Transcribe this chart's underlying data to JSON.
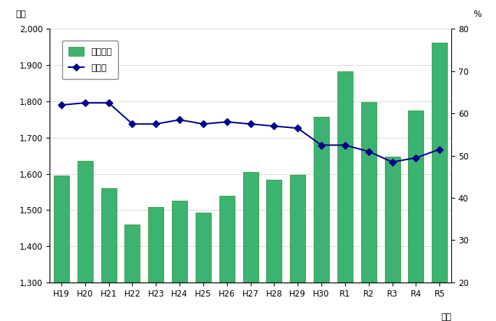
{
  "categories": [
    "H19",
    "H20",
    "H21",
    "H22",
    "H23",
    "H24",
    "H25",
    "H26",
    "H27",
    "H28",
    "H29",
    "H30",
    "R1",
    "R2",
    "R3",
    "R4",
    "R5"
  ],
  "bar_values": [
    1595,
    1635,
    1560,
    1460,
    1508,
    1525,
    1493,
    1540,
    1605,
    1583,
    1597,
    1757,
    1882,
    1797,
    1648,
    1775,
    1962
  ],
  "line_values": [
    62.0,
    62.5,
    62.5,
    57.5,
    57.5,
    58.5,
    57.5,
    58.0,
    57.5,
    57.0,
    56.5,
    52.5,
    52.5,
    51.0,
    48.5,
    49.5,
    51.5
  ],
  "bar_color": "#3CB371",
  "bar_edge_color": "#228B22",
  "line_color": "#00008B",
  "marker_color": "#00008B",
  "left_ylabel": "億円",
  "right_ylabel": "%",
  "xlabel": "年度",
  "legend_bar_label": "自主財源",
  "legend_line_label": "構成比",
  "left_ylim": [
    1300,
    2000
  ],
  "right_ylim": [
    20,
    80
  ],
  "left_yticks": [
    1300,
    1400,
    1500,
    1600,
    1700,
    1800,
    1900,
    2000
  ],
  "right_yticks": [
    20,
    30,
    40,
    50,
    60,
    70,
    80
  ],
  "background_color": "#ffffff",
  "grid_color": "#cccccc"
}
